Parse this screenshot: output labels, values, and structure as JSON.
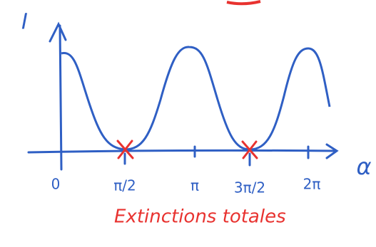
{
  "axes": {
    "y_label": "I",
    "x_label": "α"
  },
  "ticks": [
    "0",
    "π/2",
    "π",
    "3π/2",
    "2π"
  ],
  "annotation": "Extinctions totales"
}
